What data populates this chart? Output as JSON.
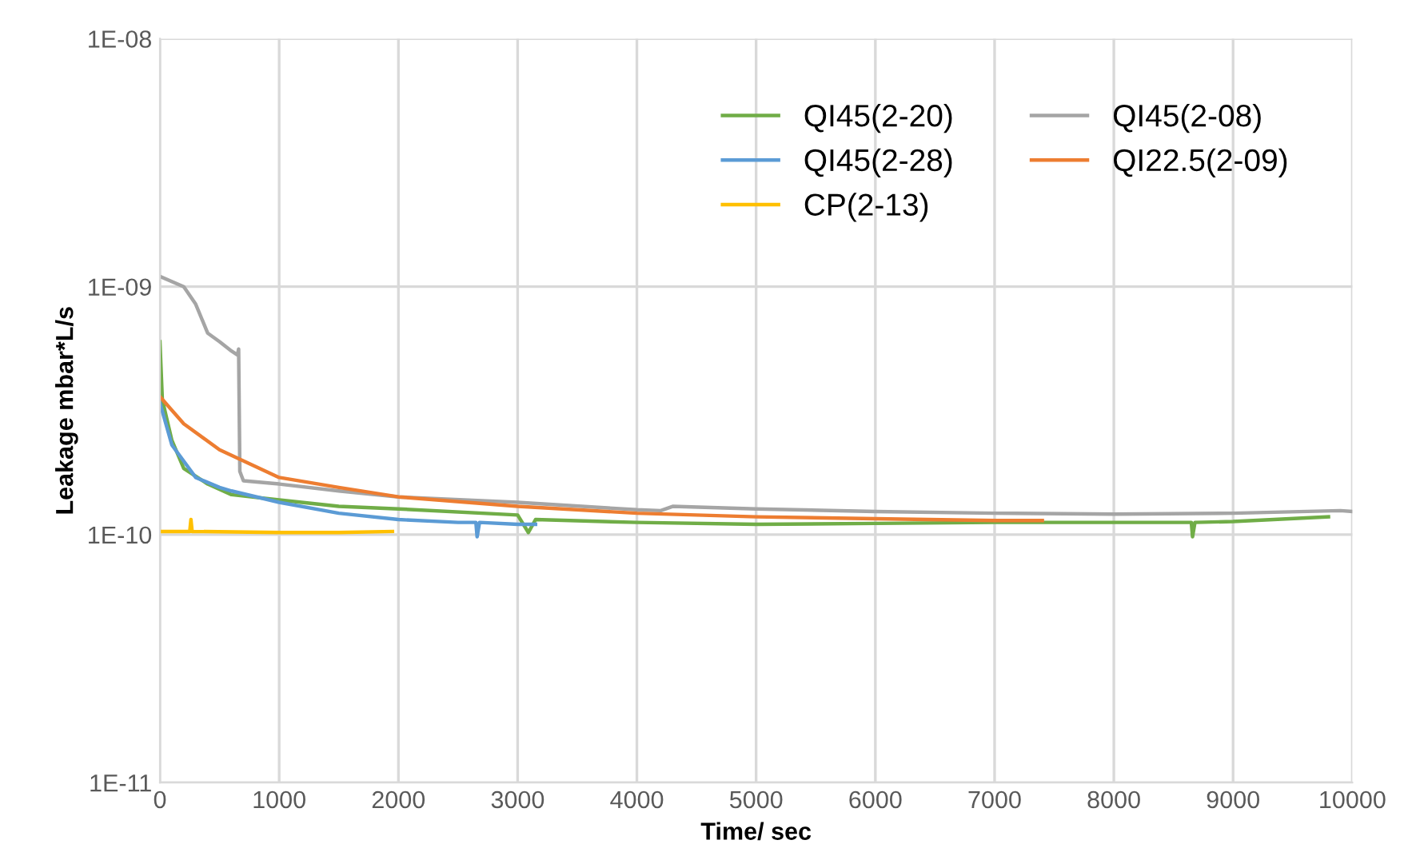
{
  "chart_data": {
    "type": "line",
    "xlabel": "Time/ sec",
    "ylabel": "Leakage mbar*L/s",
    "log": "y",
    "xlim": [
      0,
      10000
    ],
    "xticks": [
      0,
      1000,
      2000,
      3000,
      4000,
      5000,
      6000,
      7000,
      8000,
      9000,
      10000
    ],
    "ylim": [
      1e-11,
      1e-08
    ],
    "yticks": [
      {
        "value": 1e-11,
        "label": "1E-11"
      },
      {
        "value": 1e-10,
        "label": "1E-10"
      },
      {
        "value": 1e-09,
        "label": "1E-09"
      },
      {
        "value": 1e-08,
        "label": "1E-08"
      }
    ],
    "grid": true,
    "legend": "top right",
    "marker": "none",
    "line_style": "solid",
    "series": [
      {
        "name": "QI45(2-20)",
        "color": "#70ad47",
        "x": [
          0,
          20,
          100,
          200,
          400,
          600,
          1000,
          1500,
          2000,
          3000,
          3090,
          3150,
          4000,
          5000,
          6000,
          7000,
          8000,
          8650,
          8660,
          8680,
          9000,
          9800
        ],
        "values": [
          6e-10,
          3.5e-10,
          2.4e-10,
          1.85e-10,
          1.6e-10,
          1.45e-10,
          1.38e-10,
          1.3e-10,
          1.27e-10,
          1.2e-10,
          1.02e-10,
          1.15e-10,
          1.12e-10,
          1.1e-10,
          1.11e-10,
          1.12e-10,
          1.12e-10,
          1.12e-10,
          9.8e-11,
          1.12e-10,
          1.13e-10,
          1.18e-10
        ]
      },
      {
        "name": "QI45(2-28)",
        "color": "#5b9bd5",
        "x": [
          0,
          100,
          300,
          500,
          600,
          1000,
          1500,
          2000,
          2500,
          2650,
          2660,
          2680,
          3000,
          3150
        ],
        "values": [
          3.4e-10,
          2.3e-10,
          1.7e-10,
          1.55e-10,
          1.5e-10,
          1.35e-10,
          1.22e-10,
          1.15e-10,
          1.12e-10,
          1.12e-10,
          9.8e-11,
          1.12e-10,
          1.1e-10,
          1.1e-10
        ]
      },
      {
        "name": "CP(2-13)",
        "color": "#ffc000",
        "x": [
          0,
          250,
          260,
          270,
          1000,
          1500,
          1950
        ],
        "values": [
          1.03e-10,
          1.03e-10,
          1.15e-10,
          1.03e-10,
          1.02e-10,
          1.02e-10,
          1.03e-10
        ]
      },
      {
        "name": "QI45(2-08)",
        "color": "#a5a5a5",
        "x": [
          0,
          200,
          300,
          400,
          500,
          600,
          650,
          660,
          670,
          700,
          1000,
          1500,
          2000,
          3000,
          4000,
          4200,
          4300,
          5000,
          6000,
          7000,
          8000,
          9000,
          9900,
          10000
        ],
        "values": [
          1.1e-09,
          1e-09,
          8.5e-10,
          6.5e-10,
          6e-10,
          5.5e-10,
          5.3e-10,
          5.6e-10,
          1.8e-10,
          1.65e-10,
          1.6e-10,
          1.5e-10,
          1.42e-10,
          1.35e-10,
          1.26e-10,
          1.25e-10,
          1.3e-10,
          1.27e-10,
          1.24e-10,
          1.22e-10,
          1.21e-10,
          1.22e-10,
          1.25e-10,
          1.24e-10
        ]
      },
      {
        "name": "QI22.5(2-09)",
        "color": "#ed7d31",
        "x": [
          0,
          200,
          500,
          1000,
          1500,
          2000,
          3000,
          4000,
          5000,
          6000,
          7000,
          7400
        ],
        "values": [
          3.6e-10,
          2.8e-10,
          2.2e-10,
          1.7e-10,
          1.55e-10,
          1.42e-10,
          1.3e-10,
          1.22e-10,
          1.18e-10,
          1.16e-10,
          1.14e-10,
          1.14e-10
        ]
      }
    ]
  }
}
